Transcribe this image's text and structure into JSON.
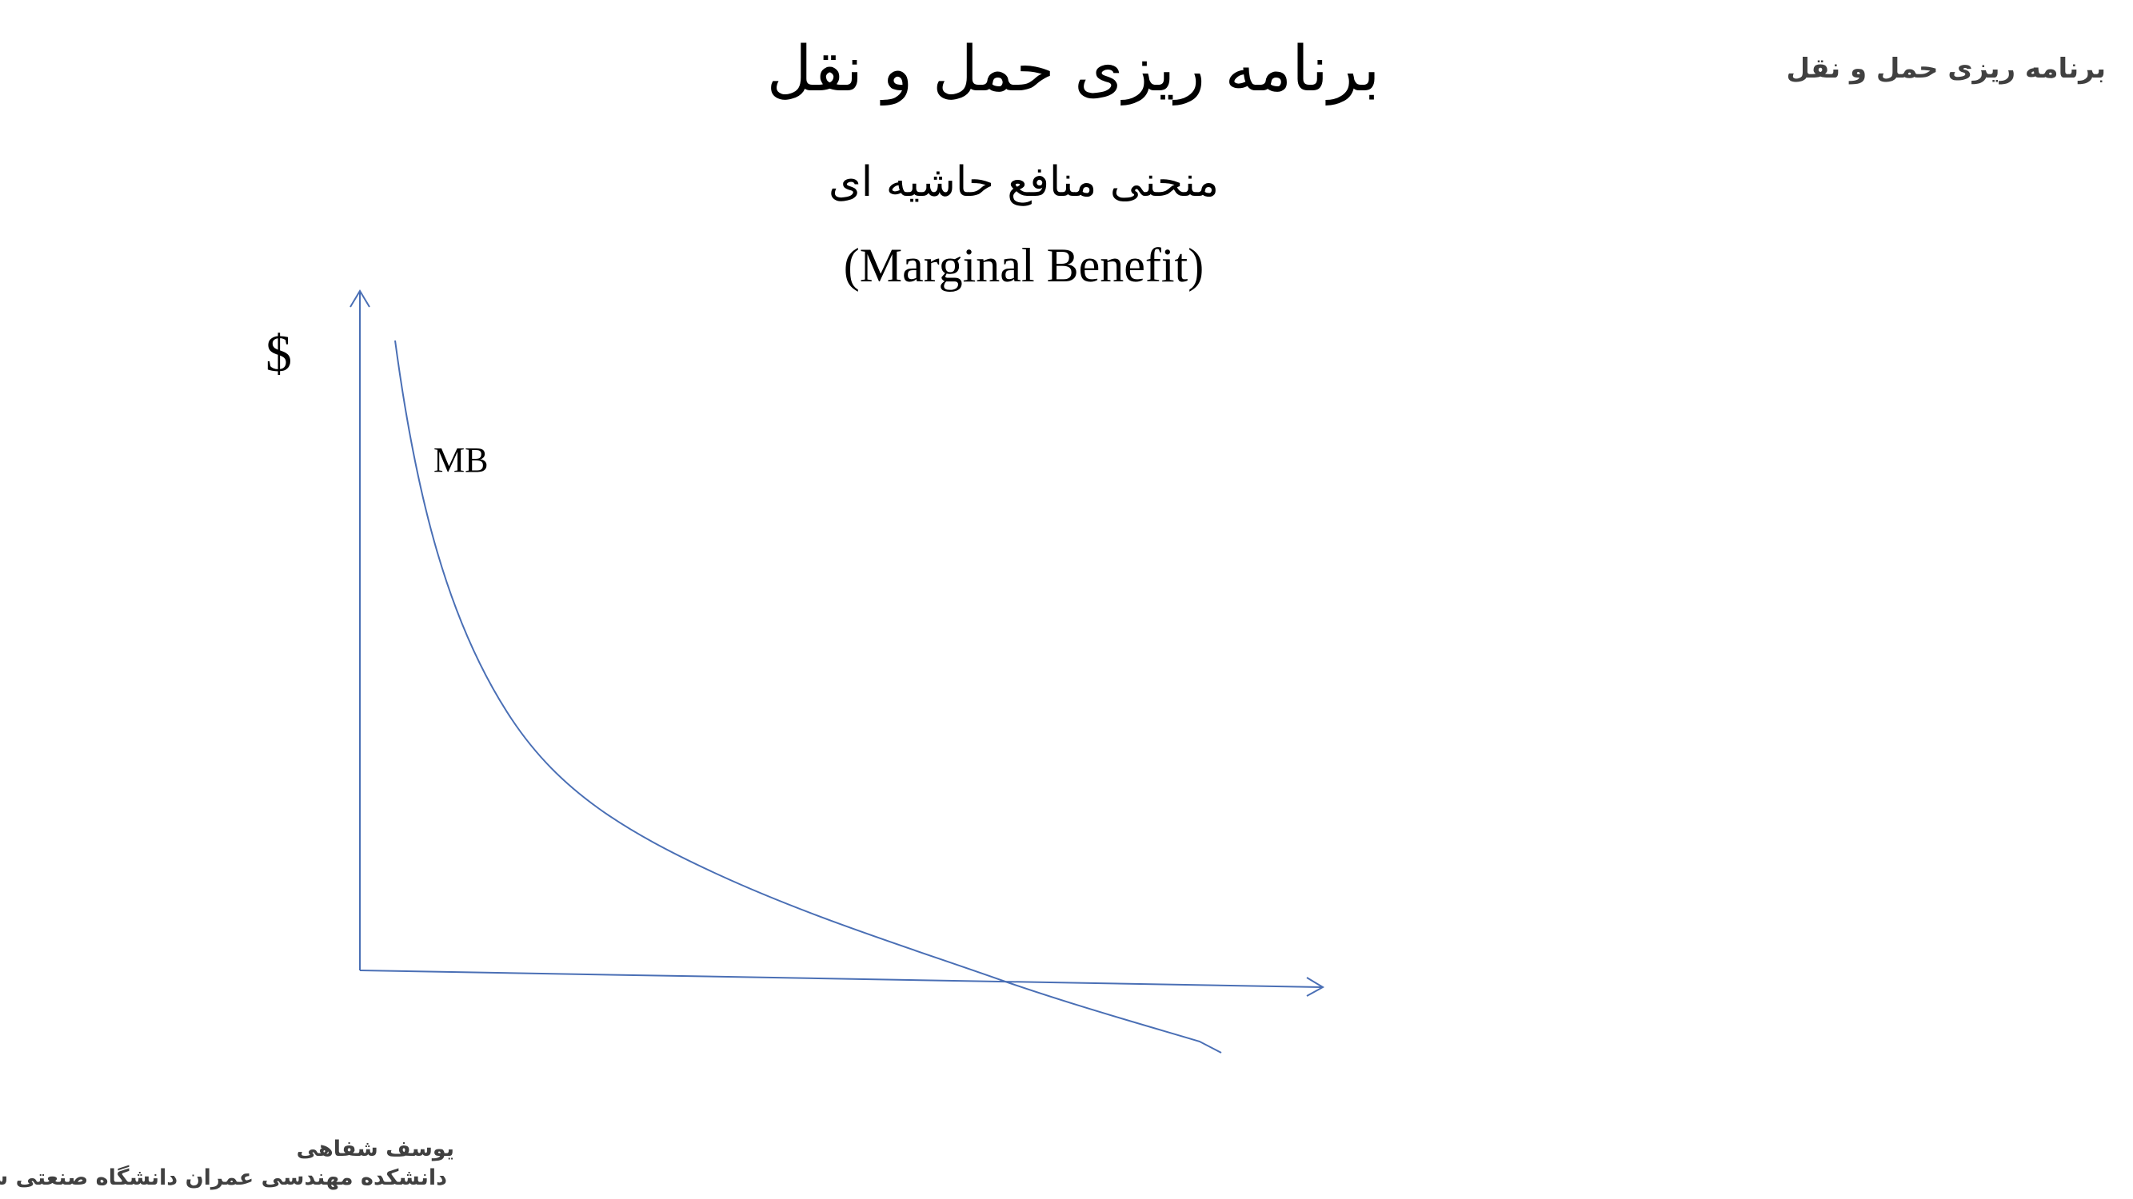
{
  "header": {
    "course": "برنامه ریزی حمل و نقل"
  },
  "title": "برنامه ریزی حمل و نقل",
  "subtitle": {
    "persian": "منحنی منافع حاشیه ای",
    "english": "(Marginal Benefit)"
  },
  "diagram": {
    "y_axis_label": "$",
    "curve_label": "MB"
  },
  "footer": {
    "author": "یوسف شفاهی",
    "affiliation": "دانشکده مهندسی عمران  دانشگاه صنعتی شریف"
  }
}
